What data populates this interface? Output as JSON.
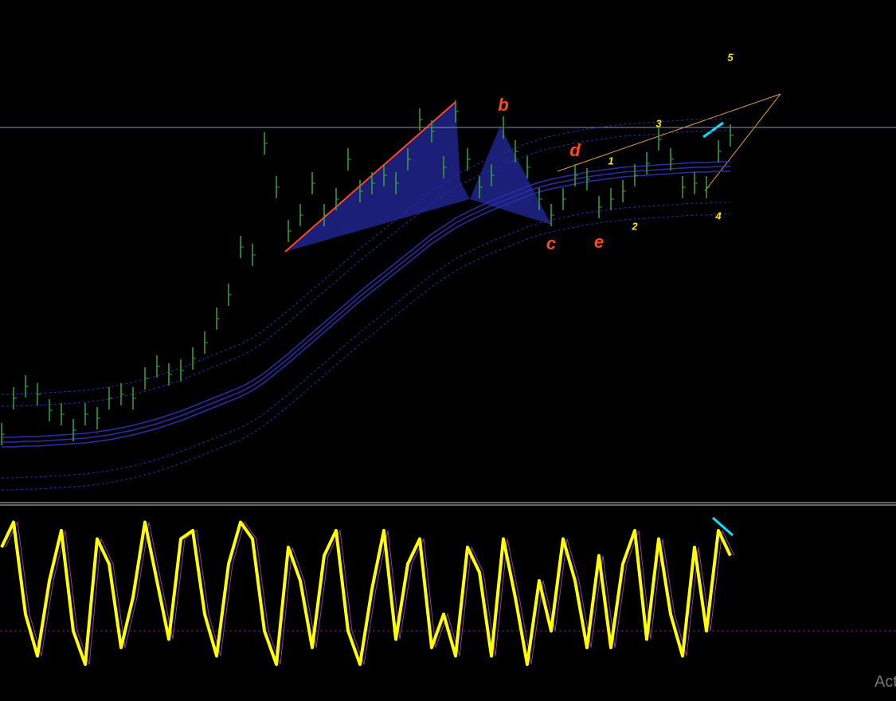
{
  "chart_data": [
    {
      "type": "price",
      "ylim": [
        0,
        630
      ],
      "series": [
        {
          "color": "#3fa03f",
          "values": [
            85,
            130,
            145,
            135,
            115,
            110,
            90,
            110,
            105,
            130,
            135,
            130,
            155,
            170,
            160,
            165,
            180,
            200,
            230,
            260,
            320,
            310,
            450,
            395,
            340,
            360,
            400,
            360,
            380,
            430,
            390,
            400,
            410,
            400,
            430,
            480,
            465,
            420,
            490,
            430,
            395,
            410,
            470,
            440,
            420,
            380,
            360,
            380,
            410,
            405,
            370,
            380,
            390,
            410,
            425,
            455,
            430,
            395,
            400,
            395,
            440,
            460
          ]
        },
        {
          "color": "#2a2fa8",
          "values": [
            75,
            75,
            76,
            76,
            77,
            78,
            79,
            80,
            82,
            84,
            87,
            90,
            94,
            98,
            103,
            108,
            114,
            120,
            126,
            132,
            138,
            146,
            156,
            168,
            180,
            193,
            206,
            219,
            232,
            245,
            258,
            270,
            282,
            294,
            306,
            318,
            330,
            340,
            350,
            358,
            365,
            372,
            378,
            384,
            390,
            395,
            399,
            402,
            405,
            408,
            410,
            412,
            414,
            415,
            416,
            417,
            418,
            419,
            420,
            420,
            421,
            421
          ]
        }
      ],
      "hline": 470,
      "annotations": [
        {
          "text": "b",
          "x": 42,
          "y": 497,
          "color": "#ff4a1a"
        },
        {
          "text": "d",
          "x": 48,
          "y": 440,
          "color": "#ff4a1a"
        },
        {
          "text": "c",
          "x": 46,
          "y": 323,
          "color": "#ff4a1a"
        },
        {
          "text": "e",
          "x": 50,
          "y": 325,
          "color": "#ff4a1a"
        },
        {
          "text": "1",
          "x": 51,
          "y": 427,
          "color": "#ffe600"
        },
        {
          "text": "2",
          "x": 53,
          "y": 345,
          "color": "#ffe600"
        },
        {
          "text": "3",
          "x": 55,
          "y": 474,
          "color": "#ffe600"
        },
        {
          "text": "4",
          "x": 60,
          "y": 358,
          "color": "#ffe600"
        },
        {
          "text": "5",
          "x": 61,
          "y": 557,
          "color": "#ffe600"
        }
      ]
    },
    {
      "type": "line",
      "ylim": [
        0,
        100
      ],
      "level": 30,
      "color": "#ffff00",
      "values": [
        80,
        95,
        40,
        15,
        60,
        90,
        30,
        10,
        85,
        70,
        20,
        50,
        95,
        60,
        25,
        85,
        90,
        40,
        15,
        70,
        95,
        85,
        30,
        10,
        80,
        60,
        20,
        75,
        90,
        30,
        10,
        55,
        90,
        25,
        70,
        85,
        20,
        40,
        15,
        80,
        65,
        15,
        85,
        50,
        10,
        60,
        30,
        85,
        60,
        20,
        75,
        20,
        70,
        90,
        25,
        85,
        40,
        15,
        80,
        30,
        90,
        75
      ]
    }
  ],
  "watermark": "Act"
}
